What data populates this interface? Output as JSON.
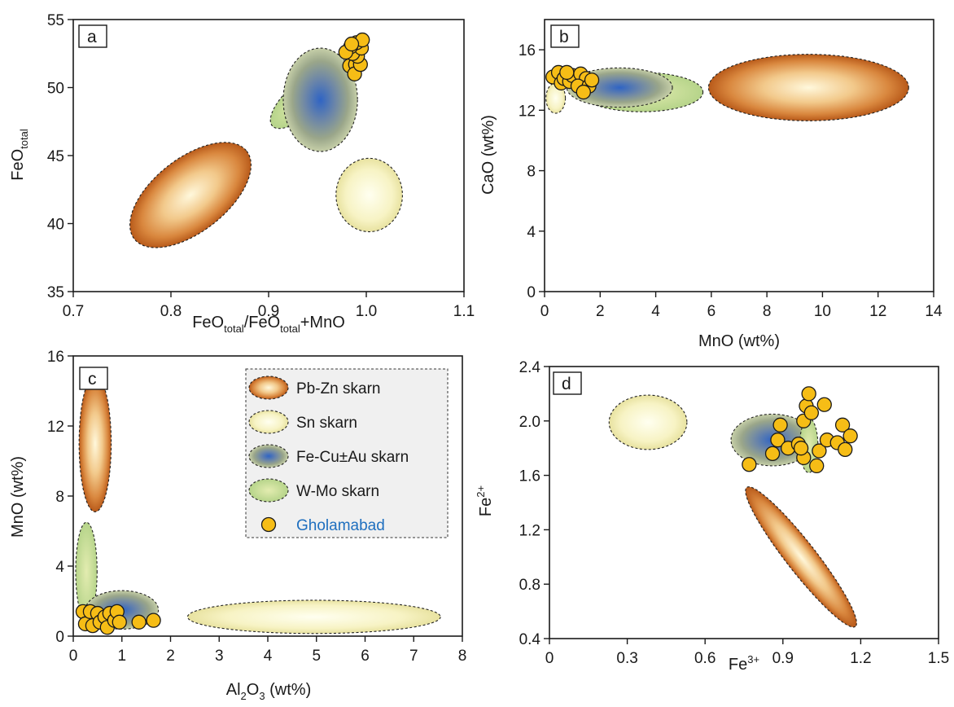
{
  "colors": {
    "pbzn": [
      "#fff8dc",
      "#f2c98b",
      "#d9873e",
      "#b85a1a"
    ],
    "sn": [
      "#fffff0",
      "#f7f3c4",
      "#e8e2a0"
    ],
    "fecu": [
      "#2f64c4",
      "#6c86a8",
      "#9aa68a",
      "#c6cfa8"
    ],
    "wmo": [
      "#e3ecb0",
      "#b6d48a"
    ],
    "point": "#f6bd16",
    "legend_gholamabad_text": "#1f6fbf"
  },
  "legend": {
    "items": [
      {
        "label": "Pb-Zn skarn",
        "fill": "pbzn"
      },
      {
        "label": "Sn skarn",
        "fill": "sn"
      },
      {
        "label": "Fe-Cu±Au skarn",
        "fill": "fecu"
      },
      {
        "label": "W-Mo skarn",
        "fill": "wmo"
      },
      {
        "label": "Gholamabad",
        "fill": "point"
      }
    ]
  },
  "chart_data": [
    {
      "panel": "a",
      "type": "scatter",
      "xlabel": "FeOtotal/FeOtotal+MnO",
      "ylabel": "FeOtotal",
      "xlim": [
        0.7,
        1.1
      ],
      "ylim": [
        35,
        55
      ],
      "xticks": [
        0.7,
        0.8,
        0.9,
        1.0,
        1.1
      ],
      "xticklabels": [
        "0.7",
        "0.8",
        "0.9",
        "1.0",
        "1.1"
      ],
      "yticks": [
        35,
        40,
        45,
        50,
        55
      ],
      "yticklabels": [
        "35",
        "40",
        "45",
        "50",
        "55"
      ],
      "fields": [
        {
          "name": "Pb-Zn skarn",
          "cx": 0.82,
          "cy": 42.1,
          "rx": 0.073,
          "ry": 2.7,
          "angle": -38
        },
        {
          "name": "Sn skarn",
          "cx": 1.003,
          "cy": 42.1,
          "rx": 0.034,
          "ry": 2.7,
          "angle": 0
        },
        {
          "name": "W-Mo skarn",
          "cx": 0.935,
          "cy": 49.2,
          "rx": 0.042,
          "ry": 1.2,
          "angle": -42
        },
        {
          "name": "Fe-Cu±Au skarn",
          "cx": 0.953,
          "cy": 49.1,
          "rx": 0.038,
          "ry": 3.8,
          "angle": 0
        }
      ],
      "points": [
        [
          0.983,
          51.6
        ],
        [
          0.989,
          51.7
        ],
        [
          0.988,
          51.0
        ],
        [
          0.994,
          51.7
        ],
        [
          0.991,
          52.3
        ],
        [
          0.986,
          52.5
        ],
        [
          0.995,
          52.9
        ],
        [
          0.99,
          53.3
        ],
        [
          0.996,
          53.5
        ],
        [
          0.984,
          53.0
        ],
        [
          0.979,
          52.6
        ],
        [
          0.985,
          53.2
        ]
      ]
    },
    {
      "panel": "b",
      "type": "scatter",
      "xlabel": "MnO (wt%)",
      "ylabel": "CaO (wt%)",
      "xlim": [
        0,
        14
      ],
      "ylim": [
        0,
        18
      ],
      "xticks": [
        0,
        2,
        4,
        6,
        8,
        10,
        12,
        14
      ],
      "xticklabels": [
        "0",
        "2",
        "4",
        "6",
        "8",
        "10",
        "12",
        "14"
      ],
      "yticks": [
        0,
        4,
        8,
        12,
        16
      ],
      "yticklabels": [
        "0",
        "4",
        "8",
        "12",
        "16"
      ],
      "fields": [
        {
          "name": "Pb-Zn skarn",
          "cx": 9.5,
          "cy": 13.5,
          "rx": 3.6,
          "ry": 2.2,
          "angle": 0
        },
        {
          "name": "Sn skarn",
          "cx": 0.4,
          "cy": 12.8,
          "rx": 0.35,
          "ry": 1.0,
          "angle": 0
        },
        {
          "name": "W-Mo skarn",
          "cx": 3.5,
          "cy": 13.2,
          "rx": 2.2,
          "ry": 1.3,
          "angle": 0
        },
        {
          "name": "Fe-Cu±Au skarn",
          "cx": 2.7,
          "cy": 13.5,
          "rx": 1.9,
          "ry": 1.3,
          "angle": 0
        }
      ],
      "points": [
        [
          0.3,
          14.2
        ],
        [
          0.5,
          14.5
        ],
        [
          0.6,
          13.8
        ],
        [
          0.7,
          14.1
        ],
        [
          0.9,
          13.9
        ],
        [
          1.0,
          14.3
        ],
        [
          1.3,
          14.4
        ],
        [
          1.5,
          14.1
        ],
        [
          1.2,
          13.6
        ],
        [
          1.6,
          13.6
        ],
        [
          0.8,
          14.5
        ],
        [
          1.4,
          13.2
        ],
        [
          1.7,
          14.0
        ]
      ]
    },
    {
      "panel": "c",
      "type": "scatter",
      "xlabel": "Al2O3 (wt%)",
      "ylabel": "MnO (wt%)",
      "xlim": [
        0,
        8
      ],
      "ylim": [
        0,
        16
      ],
      "xticks": [
        0,
        1,
        2,
        3,
        4,
        5,
        6,
        7,
        8
      ],
      "xticklabels": [
        "0",
        "1",
        "2",
        "3",
        "4",
        "5",
        "6",
        "7",
        "8"
      ],
      "yticks": [
        0,
        4,
        8,
        12,
        16
      ],
      "yticklabels": [
        "0",
        "4",
        "8",
        "12",
        "16"
      ],
      "fields": [
        {
          "name": "Pb-Zn skarn",
          "cx": 0.45,
          "cy": 11.0,
          "rx": 0.33,
          "ry": 3.9,
          "angle": 0
        },
        {
          "name": "W-Mo skarn",
          "cx": 0.27,
          "cy": 3.7,
          "rx": 0.22,
          "ry": 2.8,
          "angle": 0
        },
        {
          "name": "Fe-Cu±Au skarn",
          "cx": 1.0,
          "cy": 1.5,
          "rx": 0.75,
          "ry": 1.1,
          "angle": 0
        },
        {
          "name": "Sn skarn",
          "cx": 4.95,
          "cy": 1.1,
          "rx": 2.6,
          "ry": 0.95,
          "angle": 0
        }
      ],
      "points": [
        [
          0.2,
          1.4
        ],
        [
          0.25,
          0.7
        ],
        [
          0.35,
          1.4
        ],
        [
          0.4,
          0.6
        ],
        [
          0.5,
          1.3
        ],
        [
          0.55,
          0.8
        ],
        [
          0.65,
          1.1
        ],
        [
          0.7,
          0.5
        ],
        [
          0.75,
          1.3
        ],
        [
          0.85,
          0.9
        ],
        [
          0.9,
          1.4
        ],
        [
          0.95,
          0.8
        ],
        [
          1.35,
          0.8
        ],
        [
          1.65,
          0.9
        ]
      ]
    },
    {
      "panel": "d",
      "type": "scatter",
      "xlabel": "Fe3+",
      "ylabel": "Fe2+",
      "xlim": [
        0,
        1.5
      ],
      "ylim": [
        0.4,
        2.4
      ],
      "xticks": [
        0,
        0.3,
        0.6,
        0.9,
        1.2,
        1.5
      ],
      "xticklabels": [
        "0",
        "0.3",
        "0.6",
        "0.9",
        "1.2",
        "1.5"
      ],
      "yticks": [
        0.4,
        0.8,
        1.2,
        1.6,
        2.0,
        2.4
      ],
      "yticklabels": [
        "0.4",
        "0.8",
        "1.2",
        "1.6",
        "2.0",
        "2.4"
      ],
      "fields": [
        {
          "name": "Sn skarn",
          "cx": 0.38,
          "cy": 1.99,
          "rx": 0.15,
          "ry": 0.2,
          "angle": 0
        },
        {
          "name": "Fe-Cu±Au skarn",
          "cx": 0.86,
          "cy": 1.86,
          "rx": 0.16,
          "ry": 0.19,
          "angle": 0
        },
        {
          "name": "W-Mo skarn",
          "cx": 1.0,
          "cy": 1.82,
          "rx": 0.035,
          "ry": 0.2,
          "angle": 0
        },
        {
          "name": "Pb-Zn skarn",
          "cx": 0.97,
          "cy": 1.0,
          "rx": 0.34,
          "ry": 0.11,
          "angle": 52
        }
      ],
      "points": [
        [
          0.77,
          1.68
        ],
        [
          0.86,
          1.76
        ],
        [
          0.88,
          1.86
        ],
        [
          0.89,
          1.97
        ],
        [
          0.92,
          1.8
        ],
        [
          0.96,
          1.83
        ],
        [
          0.98,
          1.73
        ],
        [
          0.97,
          1.8
        ],
        [
          0.98,
          2.0
        ],
        [
          0.99,
          2.11
        ],
        [
          1.0,
          2.2
        ],
        [
          1.01,
          2.06
        ],
        [
          1.04,
          1.78
        ],
        [
          1.03,
          1.67
        ],
        [
          1.06,
          2.12
        ],
        [
          1.07,
          1.86
        ],
        [
          1.11,
          1.84
        ],
        [
          1.13,
          1.97
        ],
        [
          1.14,
          1.79
        ],
        [
          1.16,
          1.89
        ]
      ]
    }
  ]
}
